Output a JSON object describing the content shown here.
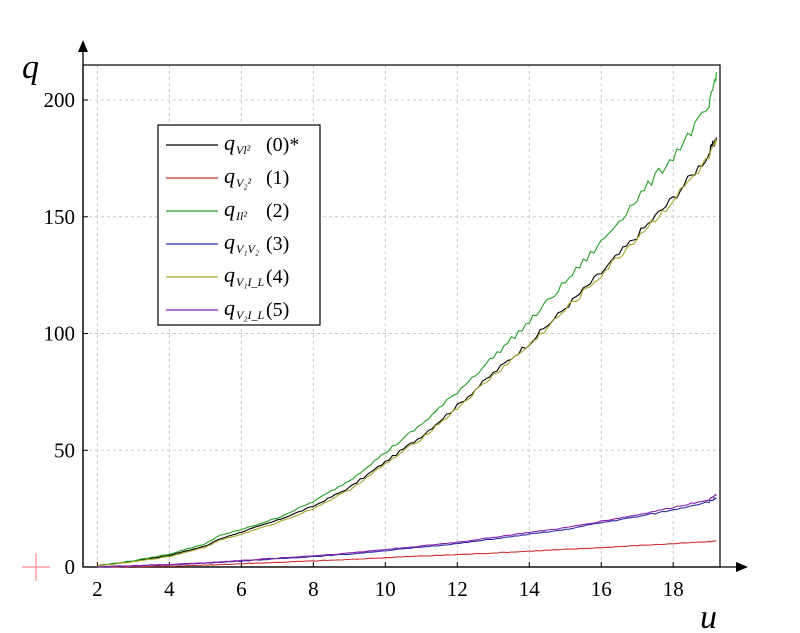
{
  "chart_data": {
    "type": "line",
    "title": "",
    "xlabel": "u",
    "ylabel": "q",
    "xlim": [
      1.6,
      19.3
    ],
    "ylim": [
      0,
      215
    ],
    "grid": true,
    "legend_position": "top-left",
    "x_ticks": [
      "2",
      "4",
      "6",
      "8",
      "10",
      "12",
      "14",
      "16",
      "18"
    ],
    "y_ticks": [
      "0",
      "50",
      "100",
      "150",
      "200"
    ],
    "x": [
      2,
      3,
      4,
      5,
      5.4,
      6,
      7,
      8,
      9,
      10,
      11,
      12,
      13,
      14,
      15,
      16,
      17,
      18,
      19,
      19.2
    ],
    "series": [
      {
        "name": "q_{V_l^2} (0)*",
        "label_main": "q",
        "label_sub": "Vl²",
        "label_tail": "(0)*",
        "color": "#000000",
        "values": [
          0.5,
          2.5,
          5,
          9,
          12,
          15,
          20,
          26,
          34,
          45,
          56,
          69,
          83,
          96,
          111,
          126,
          142,
          158,
          177,
          184
        ]
      },
      {
        "name": "q_{V_2^2} (1)",
        "label_main": "q",
        "label_sub": "V₂²",
        "label_tail": "(1)",
        "color": "#cc3333",
        "values": [
          0,
          0.2,
          0.4,
          0.8,
          1,
          1.4,
          2,
          2.6,
          3.2,
          4,
          4.7,
          5.3,
          6,
          6.8,
          7.5,
          8.3,
          9.2,
          10,
          10.8,
          11.2
        ]
      },
      {
        "name": "q_{I_l^2} (2)",
        "label_main": "q",
        "label_sub": "Il²",
        "label_tail": "(2)",
        "color": "#22a022",
        "values": [
          0.5,
          2.7,
          5.5,
          10,
          13.5,
          16,
          21,
          28,
          37,
          49,
          61,
          75,
          90,
          105,
          122,
          139,
          158,
          176,
          197,
          212
        ]
      },
      {
        "name": "q_{V_1V_2} (3)",
        "label_main": "q",
        "label_sub": "V₁V₂",
        "label_tail": "(3)",
        "color": "#2a2aa8",
        "values": [
          0,
          0.5,
          1,
          1.6,
          2,
          2.6,
          3.5,
          4.5,
          5.5,
          7,
          8.5,
          10,
          12,
          14,
          16,
          19,
          21.5,
          24.5,
          28,
          29.5
        ]
      },
      {
        "name": "q_{V_1I_L} (4)",
        "label_main": "q",
        "label_sub": "V₁I_L",
        "label_tail": "(4)",
        "color": "#a6a62a",
        "values": [
          0.4,
          2.2,
          4.5,
          8.5,
          11.5,
          14,
          19,
          25,
          33,
          44,
          55,
          68,
          82,
          95,
          110,
          125,
          141,
          157,
          175,
          182
        ]
      },
      {
        "name": "q_{V_2I_L} (5)",
        "label_main": "q",
        "label_sub": "V₂I_L",
        "label_tail": "(5)",
        "color": "#8a1fa8",
        "values": [
          0,
          0.6,
          1.1,
          1.8,
          2.2,
          2.8,
          3.8,
          4.8,
          6,
          7.5,
          9,
          10.6,
          12.7,
          14.8,
          16.8,
          19.6,
          22.3,
          25.5,
          29,
          31
        ]
      }
    ]
  }
}
